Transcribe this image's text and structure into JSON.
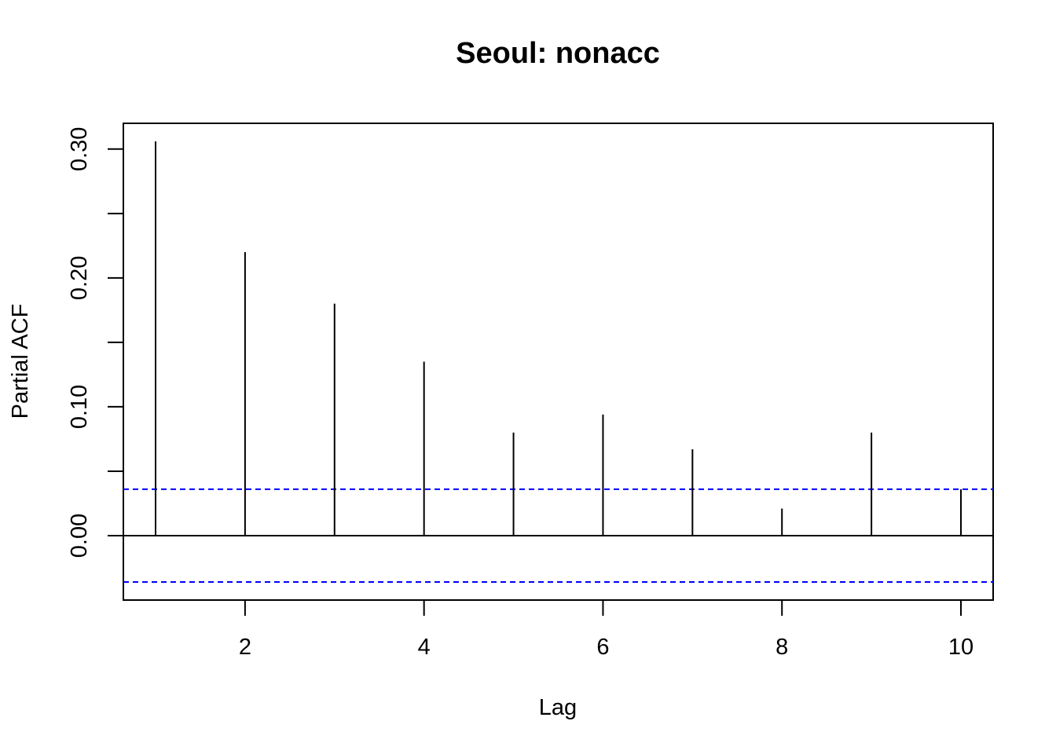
{
  "chart_data": {
    "type": "bar",
    "title": "Seoul: nonacc",
    "xlabel": "Lag",
    "ylabel": "Partial ACF",
    "xlim": [
      0.64,
      10.36
    ],
    "ylim": [
      -0.05,
      0.32
    ],
    "x_ticks": [
      2,
      4,
      6,
      8,
      10
    ],
    "x_tick_labels": [
      "2",
      "4",
      "6",
      "8",
      "10"
    ],
    "y_ticks": [
      0,
      0.05,
      0.1,
      0.15,
      0.2,
      0.25,
      0.3
    ],
    "y_tick_labels": [
      "0.00",
      "",
      "0.10",
      "",
      "0.20",
      "",
      "0.30"
    ],
    "lags": [
      1,
      2,
      3,
      4,
      5,
      6,
      7,
      8,
      9,
      10
    ],
    "values": [
      0.306,
      0.22,
      0.18,
      0.135,
      0.08,
      0.094,
      0.067,
      0.021,
      0.08,
      0.036
    ],
    "confidence_bound": 0.036,
    "colors": {
      "bars": "#000000",
      "bounds": "#0000ff",
      "axis": "#000000"
    },
    "grid": false
  }
}
